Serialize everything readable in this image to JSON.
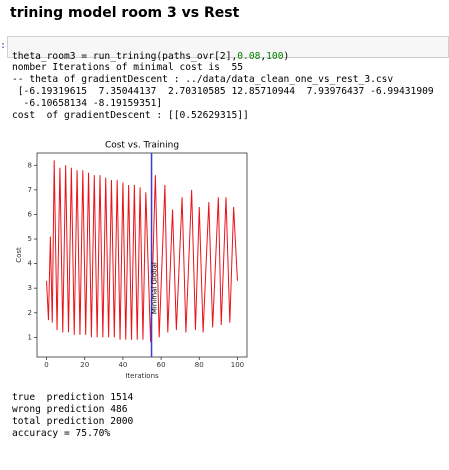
{
  "header": {
    "title": "trining model room 3 vs Rest"
  },
  "cell": {
    "prompt": ":",
    "code": [
      "theta_room3 = run_trining(paths_ovr[2],",
      "0.08",
      ",",
      "100",
      ")"
    ]
  },
  "output": {
    "lines": [
      "nomber Iterations of minimal cost is  55",
      "-- theta of gradientDescent : ../data/data_clean_one_vs_rest_3.csv",
      " [-6.19319615  7.35044137  2.70310585 12.85710944  7.93976437 -6.99431909",
      "  -6.10658134 -8.19159351]",
      "cost  of gradientDescent : [[0.52629315]]"
    ],
    "after_lines": [
      "true  prediction 1514",
      "wrong prediction 486",
      "total prediction 2000",
      "accuracy = 75.70%"
    ]
  },
  "chart_data": {
    "type": "line",
    "title": "Cost vs. Training",
    "xlabel": "Iterations",
    "ylabel": "Cost",
    "xlim": [
      -5,
      105
    ],
    "ylim": [
      0.2,
      8.5
    ],
    "xticks": [
      0,
      20,
      40,
      60,
      80,
      100
    ],
    "yticks": [
      1,
      2,
      3,
      4,
      5,
      6,
      7,
      8
    ],
    "series": [
      {
        "color": "#e8141a",
        "x": [
          0,
          1,
          2,
          3,
          4,
          5.5,
          7,
          8.5,
          10,
          11.5,
          13,
          14.5,
          16,
          17.5,
          19,
          20.5,
          22,
          23.5,
          25,
          26.5,
          28,
          29.5,
          31,
          32.5,
          34,
          35.5,
          37,
          38.5,
          40,
          41.5,
          43,
          44.5,
          46,
          47.5,
          49,
          50.5,
          52,
          54.5,
          57,
          59,
          62,
          63.5,
          66,
          68,
          71,
          73,
          76,
          78,
          80,
          82,
          85,
          87,
          90,
          91.5,
          94,
          96,
          98,
          100
        ],
        "values": [
          3.3,
          1.7,
          5.1,
          1.6,
          8.2,
          1.3,
          7.9,
          1.2,
          8.0,
          1.2,
          7.9,
          1.1,
          7.8,
          1.1,
          7.8,
          1.1,
          7.7,
          1.0,
          7.6,
          1.0,
          7.6,
          1.0,
          7.5,
          1.0,
          7.4,
          1.0,
          7.4,
          0.9,
          7.3,
          0.9,
          7.2,
          0.9,
          7.2,
          0.9,
          7.1,
          0.9,
          6.9,
          0.8,
          7.6,
          1.0,
          7.2,
          1.2,
          6.2,
          1.3,
          6.7,
          1.2,
          7.0,
          1.3,
          6.3,
          1.2,
          6.5,
          1.4,
          6.7,
          1.5,
          6.7,
          1.6,
          6.3,
          3.3
        ]
      }
    ],
    "vline": {
      "x": 55,
      "label": "Minimal Global",
      "color": "#3b3bd6"
    }
  }
}
